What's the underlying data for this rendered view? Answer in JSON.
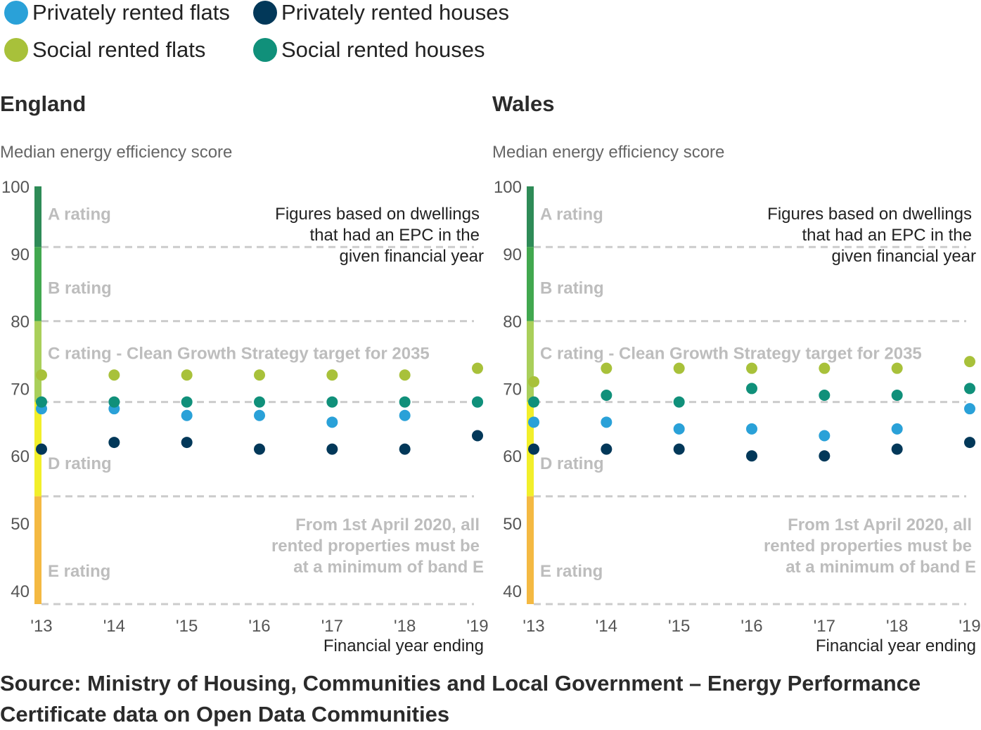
{
  "legend": [
    {
      "label": "Privately rented flats",
      "color": "#2aa1d8",
      "icon": "circle"
    },
    {
      "label": "Privately rented houses",
      "color": "#023859",
      "icon": "circle"
    },
    {
      "label": "Social rented flats",
      "color": "#a8c13a",
      "icon": "circle"
    },
    {
      "label": "Social rented houses",
      "color": "#10907a",
      "icon": "circle"
    }
  ],
  "source": "Source: Ministry of Housing, Communities and Local Government – Energy Performance Certificate data on Open Data Communities",
  "chart_data": [
    {
      "type": "scatter",
      "title": "England",
      "ylabel": "Median energy efficiency score",
      "xlabel": "Financial year ending",
      "categories": [
        "'13",
        "'14",
        "'15",
        "'16",
        "'17",
        "'18",
        "'19"
      ],
      "yticks": [
        40,
        50,
        60,
        70,
        80,
        90,
        100
      ],
      "ylim": [
        38,
        100
      ],
      "grid": false,
      "bands": [
        {
          "label": "A rating",
          "from": 91,
          "to": 100,
          "color": "#2e8b57"
        },
        {
          "label": "B rating",
          "from": 80,
          "to": 91,
          "color": "#41a84f"
        },
        {
          "label": "C rating - Clean Growth Strategy target for 2035",
          "from": 68,
          "to": 80,
          "color": "#a9cf5a"
        },
        {
          "label": "D rating",
          "from": 54,
          "to": 68,
          "color": "#f2ef2a"
        },
        {
          "label": "E rating",
          "from": 38,
          "to": 54,
          "color": "#f4b942"
        }
      ],
      "thresholds": [
        91,
        80,
        68,
        54,
        38
      ],
      "annotations": {
        "note": [
          "Figures based on dwellings",
          "that had an EPC in the",
          "given financial year"
        ],
        "policy": [
          "From 1st April 2020, all",
          "rented properties must be",
          "at a minimum of band E"
        ]
      },
      "series": [
        {
          "name": "Privately rented flats",
          "values": [
            67,
            67,
            66,
            66,
            65,
            66,
            68
          ]
        },
        {
          "name": "Privately rented houses",
          "values": [
            61,
            62,
            62,
            61,
            61,
            61,
            63
          ]
        },
        {
          "name": "Social rented flats",
          "values": [
            72,
            72,
            72,
            72,
            72,
            72,
            73
          ]
        },
        {
          "name": "Social rented houses",
          "values": [
            68,
            68,
            68,
            68,
            68,
            68,
            68
          ]
        }
      ]
    },
    {
      "type": "scatter",
      "title": "Wales",
      "ylabel": "Median energy efficiency score",
      "xlabel": "Financial year ending",
      "categories": [
        "'13",
        "'14",
        "'15",
        "'16",
        "'17",
        "'18",
        "'19"
      ],
      "yticks": [
        40,
        50,
        60,
        70,
        80,
        90,
        100
      ],
      "ylim": [
        38,
        100
      ],
      "grid": false,
      "bands": [
        {
          "label": "A rating",
          "from": 91,
          "to": 100,
          "color": "#2e8b57"
        },
        {
          "label": "B rating",
          "from": 80,
          "to": 91,
          "color": "#41a84f"
        },
        {
          "label": "C rating - Clean Growth Strategy target for 2035",
          "from": 68,
          "to": 80,
          "color": "#a9cf5a"
        },
        {
          "label": "D rating",
          "from": 54,
          "to": 68,
          "color": "#f2ef2a"
        },
        {
          "label": "E rating",
          "from": 38,
          "to": 54,
          "color": "#f4b942"
        }
      ],
      "thresholds": [
        91,
        80,
        68,
        54,
        38
      ],
      "annotations": {
        "note": [
          "Figures based on dwellings",
          "that had an EPC in the",
          "given financial year"
        ],
        "policy": [
          "From 1st April 2020, all",
          "rented properties must be",
          "at a minimum of band E"
        ]
      },
      "series": [
        {
          "name": "Privately rented flats",
          "values": [
            65,
            65,
            64,
            64,
            63,
            64,
            67
          ]
        },
        {
          "name": "Privately rented houses",
          "values": [
            61,
            61,
            61,
            60,
            60,
            61,
            62
          ]
        },
        {
          "name": "Social rented flats",
          "values": [
            71,
            73,
            73,
            73,
            73,
            73,
            74
          ]
        },
        {
          "name": "Social rented houses",
          "values": [
            68,
            69,
            68,
            70,
            69,
            69,
            70
          ]
        }
      ]
    }
  ]
}
